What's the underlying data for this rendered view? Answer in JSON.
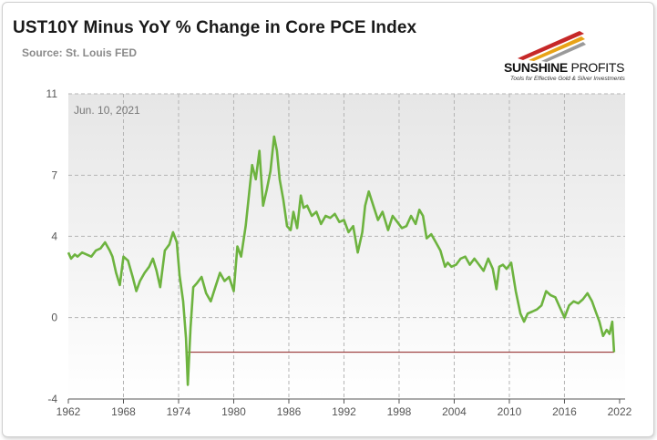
{
  "title": "UST10Y Minus YoY % Change in Core PCE Index",
  "source": "Source: St. Louis FED",
  "logo": {
    "brand": "SUNSHINE",
    "brand_light": "PROFITS",
    "tagline": "Tools for Effective Gold & Silver Investments",
    "colors": [
      "#c62828",
      "#e8a317",
      "#7a7a7a"
    ]
  },
  "chart_data": {
    "type": "line",
    "title": "UST10Y Minus YoY % Change in Core PCE Index",
    "annotation": "Jun. 10, 2021",
    "xlabel": "",
    "ylabel": "",
    "xlim": [
      1962,
      2022.6
    ],
    "ylim": [
      -4,
      11
    ],
    "x_ticks": [
      1962,
      1968,
      1974,
      1980,
      1986,
      1992,
      1998,
      2004,
      2010,
      2016,
      2022
    ],
    "y_ticks": [
      -4,
      0,
      4,
      7,
      11
    ],
    "grid": true,
    "line_color": "#6db33f",
    "reference_line": {
      "y": -1.7,
      "x_start": 1975.0,
      "x_end": 2021.4,
      "color": "#8b1c1c"
    },
    "series": [
      {
        "x": [
          1962.0,
          1962.3,
          1962.7,
          1963.0,
          1963.5,
          1964.0,
          1964.5,
          1965.0,
          1965.5,
          1966.0,
          1966.5,
          1966.8,
          1967.2,
          1967.6,
          1968.0,
          1968.5,
          1969.0,
          1969.4,
          1969.8,
          1970.3,
          1970.8,
          1971.2,
          1971.6,
          1972.0,
          1972.5,
          1973.0,
          1973.4,
          1973.8,
          1974.1,
          1974.5,
          1974.8,
          1975.0,
          1975.3,
          1975.6,
          1976.0,
          1976.5,
          1977.0,
          1977.5,
          1978.0,
          1978.5,
          1979.0,
          1979.5,
          1980.0,
          1980.4,
          1980.8,
          1981.3,
          1981.7,
          1982.0,
          1982.4,
          1982.8,
          1983.2,
          1983.6,
          1984.0,
          1984.4,
          1984.7,
          1985.0,
          1985.4,
          1985.8,
          1986.2,
          1986.5,
          1986.9,
          1987.3,
          1987.6,
          1988.0,
          1988.5,
          1989.0,
          1989.5,
          1990.0,
          1990.5,
          1991.0,
          1991.5,
          1992.0,
          1992.5,
          1993.0,
          1993.5,
          1994.0,
          1994.3,
          1994.7,
          1995.2,
          1995.7,
          1996.2,
          1996.8,
          1997.3,
          1997.8,
          1998.3,
          1998.8,
          1999.3,
          1999.8,
          2000.2,
          2000.6,
          2001.0,
          2001.5,
          2002.0,
          2002.5,
          2003.0,
          2003.3,
          2003.7,
          2004.2,
          2004.7,
          2005.2,
          2005.7,
          2006.2,
          2006.7,
          2007.2,
          2007.7,
          2008.2,
          2008.6,
          2008.9,
          2009.3,
          2009.7,
          2010.2,
          2010.7,
          2011.2,
          2011.6,
          2012.0,
          2012.5,
          2013.0,
          2013.5,
          2014.0,
          2014.5,
          2015.0,
          2015.5,
          2016.0,
          2016.5,
          2017.0,
          2017.5,
          2018.0,
          2018.5,
          2019.0,
          2019.4,
          2019.8,
          2020.2,
          2020.6,
          2020.9,
          2021.2,
          2021.4
        ],
        "y": [
          3.2,
          2.9,
          3.1,
          3.0,
          3.2,
          3.1,
          3.0,
          3.3,
          3.4,
          3.7,
          3.3,
          3.0,
          2.2,
          1.6,
          3.0,
          2.8,
          2.0,
          1.3,
          1.8,
          2.2,
          2.5,
          2.9,
          2.3,
          1.5,
          3.3,
          3.6,
          4.2,
          3.7,
          2.1,
          0.8,
          -1.0,
          -3.3,
          -0.5,
          1.5,
          1.7,
          2.0,
          1.2,
          0.8,
          1.5,
          2.2,
          1.8,
          2.0,
          1.3,
          3.5,
          3.0,
          4.5,
          6.2,
          7.5,
          6.8,
          8.2,
          5.5,
          6.3,
          7.2,
          8.9,
          8.2,
          6.8,
          5.8,
          4.5,
          4.3,
          5.2,
          4.4,
          6.0,
          5.4,
          5.5,
          5.0,
          5.2,
          4.6,
          5.0,
          4.9,
          5.1,
          4.7,
          4.8,
          4.2,
          4.5,
          3.2,
          4.2,
          5.5,
          6.2,
          5.5,
          4.8,
          5.2,
          4.3,
          5.0,
          4.7,
          4.4,
          4.5,
          5.0,
          4.6,
          5.3,
          5.0,
          3.9,
          4.1,
          3.7,
          3.3,
          2.5,
          2.7,
          2.5,
          2.6,
          2.9,
          3.0,
          2.6,
          2.9,
          2.6,
          2.3,
          2.9,
          2.4,
          1.4,
          2.5,
          2.6,
          2.4,
          2.7,
          1.3,
          0.2,
          -0.2,
          0.2,
          0.3,
          0.4,
          0.6,
          1.3,
          1.1,
          1.0,
          0.5,
          0.0,
          0.6,
          0.8,
          0.7,
          0.9,
          1.2,
          0.8,
          0.3,
          -0.2,
          -0.9,
          -0.6,
          -0.8,
          -0.2,
          -1.7
        ]
      }
    ]
  }
}
